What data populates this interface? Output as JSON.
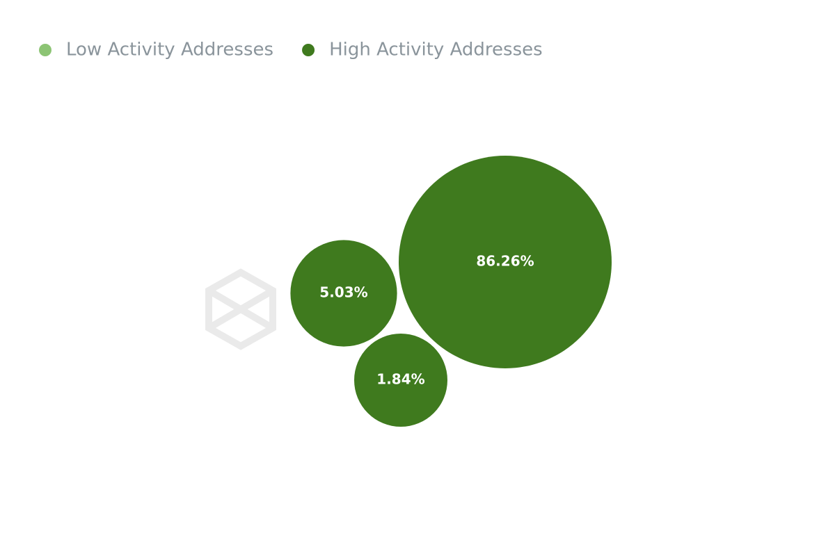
{
  "chart_data": {
    "type": "packed-bubble",
    "series": [
      {
        "name": "Low Activity Addresses",
        "color": "#8cc474",
        "values": []
      },
      {
        "name": "High Activity Addresses",
        "color": "#3f7a1e",
        "values": [
          86.26,
          5.03,
          1.84
        ],
        "value_labels": [
          "86.26%",
          "5.03%",
          "1.84%"
        ]
      }
    ]
  }
}
